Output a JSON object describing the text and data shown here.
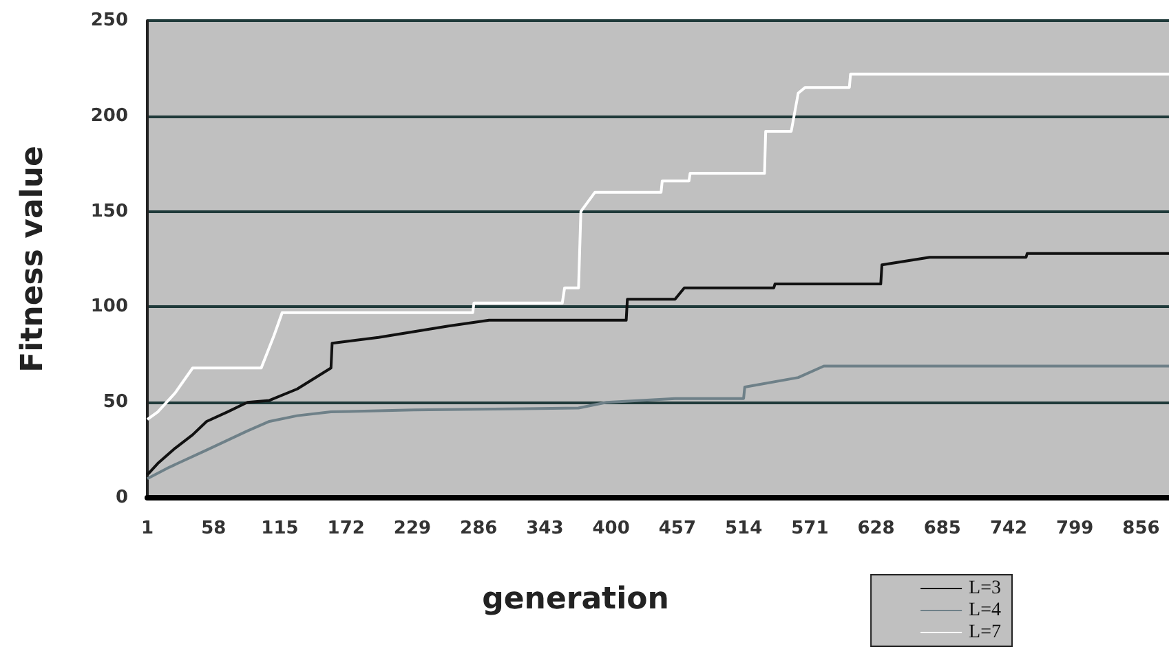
{
  "chart_data": {
    "type": "line",
    "xlabel": "generation",
    "ylabel": "Fitness value",
    "xlim": [
      1,
      880
    ],
    "xticks": [
      1,
      58,
      115,
      172,
      229,
      286,
      343,
      400,
      457,
      514,
      571,
      628,
      685,
      742,
      799,
      856
    ],
    "ylim": [
      0,
      250
    ],
    "yticks": [
      0,
      50,
      100,
      150,
      200,
      250
    ],
    "grid": "y",
    "legend": "bottom right",
    "marker": "none",
    "line_style": "solid",
    "series": [
      {
        "name": "L=3",
        "color": "#111111",
        "x": [
          1,
          10,
          25,
          40,
          52,
          70,
          87,
          106,
          130,
          159,
          160,
          200,
          230,
          260,
          295,
          413,
          414,
          455,
          463,
          540,
          541,
          632,
          633,
          674,
          757,
          758,
          880
        ],
        "values": [
          12,
          18,
          26,
          33,
          40,
          45,
          50,
          51,
          57,
          68,
          81,
          84,
          87,
          90,
          93,
          93,
          104,
          104,
          110,
          110,
          112,
          112,
          122,
          126,
          126,
          128,
          128
        ]
      },
      {
        "name": "L=4",
        "color": "#6e8088",
        "x": [
          1,
          20,
          52,
          87,
          106,
          130,
          159,
          230,
          372,
          396,
          455,
          514,
          515,
          561,
          583,
          880
        ],
        "values": [
          10,
          16,
          25,
          35,
          40,
          43,
          45,
          46,
          47,
          50,
          52,
          52,
          58,
          63,
          69,
          69
        ]
      },
      {
        "name": "L=7",
        "color": "#ffffff",
        "x": [
          1,
          10,
          25,
          40,
          99,
          110,
          117,
          281,
          282,
          358,
          360,
          372,
          374,
          386,
          443,
          444,
          467,
          468,
          532,
          533,
          555,
          561,
          567,
          605,
          606,
          880
        ],
        "values": [
          41,
          45,
          55,
          68,
          68,
          85,
          97,
          97,
          102,
          102,
          110,
          110,
          150,
          160,
          160,
          166,
          166,
          170,
          170,
          192,
          192,
          212,
          215,
          215,
          222,
          222
        ]
      }
    ]
  }
}
